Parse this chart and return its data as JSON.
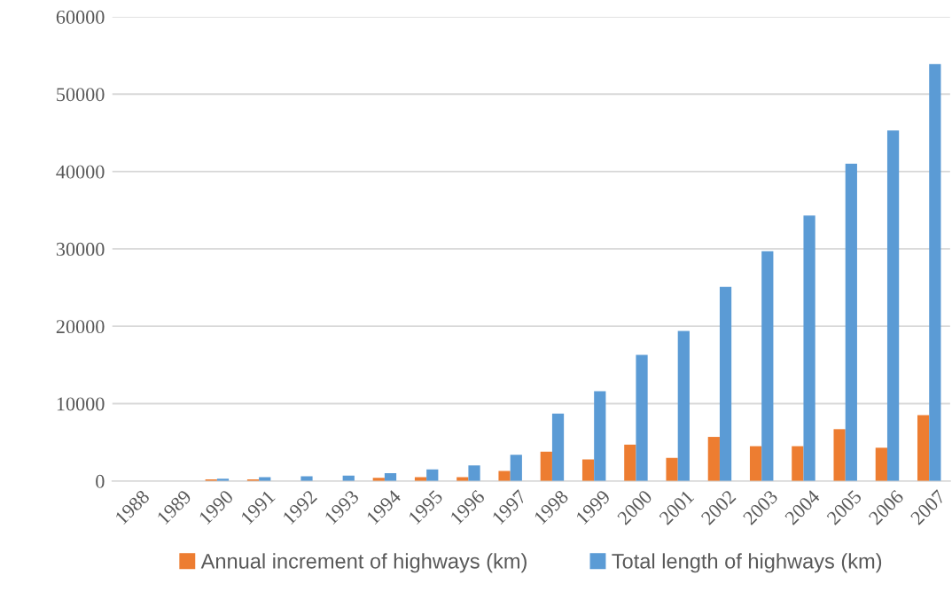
{
  "chart_data": {
    "type": "bar",
    "categories": [
      "1988",
      "1989",
      "1990",
      "1991",
      "1992",
      "1993",
      "1994",
      "1995",
      "1996",
      "1997",
      "1998",
      "1999",
      "2000",
      "2001",
      "2002",
      "2003",
      "2004",
      "2005",
      "2006",
      "2007"
    ],
    "series": [
      {
        "name": "Annual increment of highways (km)",
        "color": "#ed7d31",
        "values": [
          0,
          0,
          200,
          200,
          0,
          0,
          400,
          500,
          500,
          1300,
          3800,
          2800,
          4700,
          3000,
          5700,
          4500,
          4500,
          6700,
          4300,
          8500
        ]
      },
      {
        "name": "Total length of highways (km)",
        "color": "#5b9bd5",
        "values": [
          0,
          0,
          300,
          500,
          600,
          700,
          1000,
          1500,
          2000,
          3400,
          8700,
          11600,
          16300,
          19400,
          25100,
          29700,
          34300,
          41000,
          45300,
          53900
        ]
      }
    ],
    "ylim": [
      0,
      60000
    ],
    "yticks": [
      0,
      10000,
      20000,
      30000,
      40000,
      50000,
      60000
    ],
    "grid": "y",
    "legend": "bottom"
  }
}
